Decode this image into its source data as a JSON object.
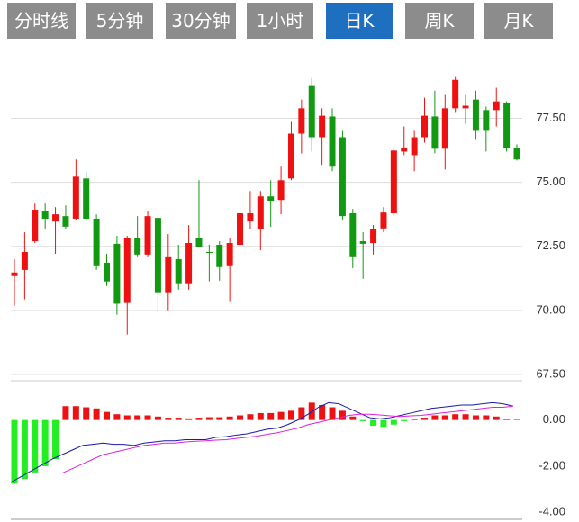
{
  "tabs": {
    "labels": [
      "分时线",
      "5分钟",
      "30分钟",
      "1小时",
      "日K",
      "周K",
      "月K"
    ],
    "active": 4
  },
  "chart_data": [
    {
      "type": "candlestick",
      "up_color": "#ee1111",
      "down_color": "#119911",
      "open": [
        71.34,
        71.58,
        72.7,
        73.86,
        73.47,
        73.68,
        73.58,
        75.15,
        73.58,
        71.86,
        72.6,
        70.29,
        72.81,
        72.18,
        73.61,
        70.71,
        72.0,
        71.06,
        72.81,
        72.28,
        72.56,
        71.76,
        72.56,
        73.47,
        73.16,
        74.45,
        74.31,
        75.15,
        76.9,
        78.76,
        76.76,
        77.57,
        76.76,
        73.79,
        72.7,
        72.63,
        73.2,
        73.79,
        76.2,
        76.06,
        76.76,
        77.57,
        76.31,
        77.89,
        77.89,
        78.23,
        77.82,
        77.82,
        78.09,
        76.34
      ],
      "high": [
        72.0,
        73.05,
        74.17,
        74.17,
        74.03,
        74.1,
        75.89,
        75.43,
        73.75,
        72.21,
        72.91,
        72.91,
        73.68,
        73.86,
        73.75,
        72.98,
        72.56,
        73.33,
        75.08,
        72.56,
        72.7,
        72.81,
        74.03,
        74.66,
        74.66,
        75.08,
        75.61,
        77.36,
        78.23,
        79.08,
        77.89,
        77.89,
        77.01,
        73.96,
        73.05,
        73.33,
        74.03,
        76.31,
        77.18,
        77.01,
        78.3,
        78.58,
        78.41,
        79.11,
        78.41,
        78.58,
        77.96,
        78.69,
        78.16,
        76.48
      ],
      "low": [
        70.18,
        70.43,
        72.63,
        73.16,
        72.21,
        73.16,
        73.51,
        73.51,
        71.58,
        70.95,
        69.83,
        69.06,
        72.11,
        72.11,
        69.9,
        70.01,
        70.81,
        70.81,
        72.46,
        71.13,
        71.16,
        70.36,
        72.46,
        73.16,
        72.35,
        73.26,
        73.75,
        75.08,
        76.13,
        76.2,
        75.68,
        75.43,
        73.51,
        71.65,
        71.23,
        72.18,
        73.05,
        73.68,
        76.06,
        75.43,
        76.55,
        76.13,
        75.5,
        77.71,
        77.29,
        76.66,
        76.2,
        77.18,
        76.2,
        75.85
      ],
      "close": [
        71.48,
        72.28,
        73.93,
        73.58,
        73.75,
        73.27,
        75.22,
        73.58,
        71.76,
        71.13,
        70.26,
        72.81,
        72.18,
        73.68,
        70.71,
        72.11,
        71.06,
        72.63,
        72.46,
        72.25,
        71.69,
        72.63,
        73.79,
        73.79,
        74.45,
        74.28,
        75.08,
        76.9,
        77.89,
        76.76,
        77.6,
        75.61,
        73.68,
        72.11,
        72.6,
        73.16,
        73.82,
        76.24,
        76.34,
        76.76,
        77.6,
        76.31,
        77.89,
        79.0,
        77.99,
        77.01,
        77.01,
        78.16,
        76.34,
        75.89
      ],
      "ylim": [
        67.5,
        79.8
      ],
      "yticks": [
        {
          "value": 67.5,
          "label": "67.50"
        },
        {
          "value": 70,
          "label": "70.00"
        },
        {
          "value": 72.5,
          "label": "72.50"
        },
        {
          "value": 75,
          "label": "75.00"
        },
        {
          "value": 77.5,
          "label": "77.50"
        }
      ],
      "grid": true
    },
    {
      "type": "macd",
      "up_color": "#ee1111",
      "down_color": "#22ee22",
      "series": [
        {
          "type": "bar",
          "values": [
            -2.75,
            -2.55,
            -2.27,
            -2.0,
            -1.69,
            0.6,
            0.6,
            0.55,
            0.5,
            0.35,
            0.25,
            0.2,
            0.2,
            0.2,
            0.15,
            0.1,
            0.1,
            0.07,
            0.1,
            0.12,
            0.12,
            0.15,
            0.2,
            0.25,
            0.3,
            0.3,
            0.35,
            0.4,
            0.55,
            0.75,
            0.65,
            0.55,
            0.4,
            0.15,
            -0.05,
            -0.25,
            -0.3,
            -0.2,
            -0.05,
            0.05,
            0.1,
            0.2,
            0.2,
            0.25,
            0.25,
            0.2,
            0.2,
            0.15,
            0.05,
            0.02
          ]
        },
        {
          "type": "line",
          "color": "#1a1aa8",
          "values": [
            -2.7,
            -2.45,
            -2.2,
            -1.95,
            -1.7,
            -1.5,
            -1.3,
            -1.1,
            -1.05,
            -1.0,
            -1.05,
            -1.05,
            -1.1,
            -1.0,
            -0.95,
            -0.9,
            -0.9,
            -0.85,
            -0.85,
            -0.85,
            -0.75,
            -0.72,
            -0.65,
            -0.6,
            -0.5,
            -0.4,
            -0.35,
            -0.2,
            0.0,
            0.25,
            0.55,
            0.75,
            0.7,
            0.5,
            0.3,
            0.1,
            0.05,
            0.1,
            0.2,
            0.3,
            0.4,
            0.5,
            0.55,
            0.6,
            0.65,
            0.65,
            0.7,
            0.75,
            0.7,
            0.6
          ]
        },
        {
          "type": "line",
          "color": "#dd22dd",
          "values": [
            null,
            null,
            null,
            null,
            null,
            -2.3,
            -2.1,
            -1.9,
            -1.7,
            -1.5,
            -1.4,
            -1.3,
            -1.2,
            -1.1,
            -1.05,
            -1.0,
            -1.0,
            -0.95,
            -0.92,
            -0.9,
            -0.87,
            -0.85,
            -0.8,
            -0.75,
            -0.7,
            -0.62,
            -0.55,
            -0.45,
            -0.35,
            -0.2,
            -0.1,
            0.0,
            0.1,
            0.2,
            0.25,
            0.25,
            0.22,
            0.18,
            0.15,
            0.18,
            0.2,
            0.25,
            0.3,
            0.35,
            0.4,
            0.45,
            0.5,
            0.55,
            0.55,
            0.6
          ]
        }
      ],
      "ylim": [
        -4.3,
        1.7
      ],
      "yticks": [
        {
          "value": -4,
          "label": "-4.00"
        },
        {
          "value": -2,
          "label": "-2.00"
        },
        {
          "value": 0,
          "label": "0.00"
        }
      ],
      "grid": false
    }
  ]
}
